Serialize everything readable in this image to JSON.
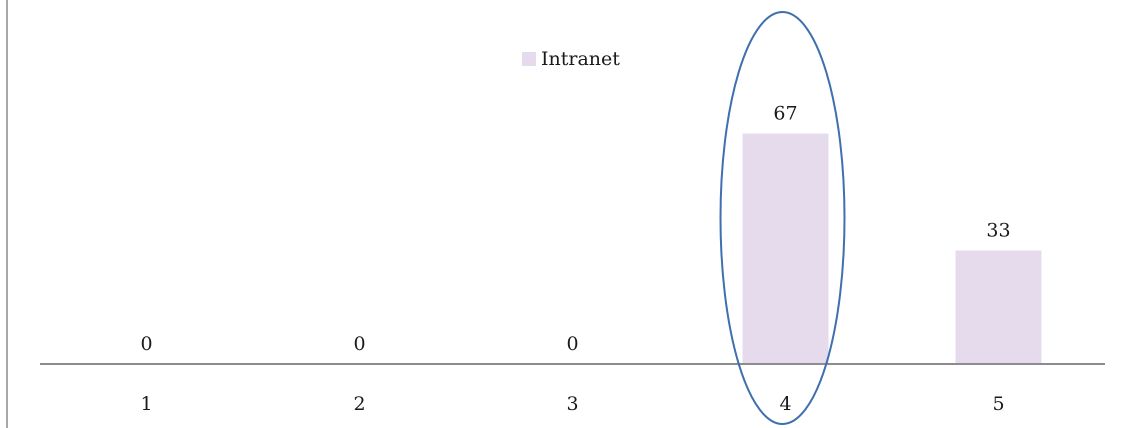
{
  "chart_data": {
    "type": "bar",
    "categories": [
      "1",
      "2",
      "3",
      "4",
      "5"
    ],
    "series": [
      {
        "name": "Intranet",
        "values": [
          0,
          0,
          0,
          67,
          33
        ],
        "color": "#e6dbec"
      }
    ],
    "title": "",
    "xlabel": "",
    "ylabel": "",
    "ylim": [
      0,
      100
    ],
    "grid": false,
    "legend": "top-center",
    "data_labels": true,
    "highlight": {
      "category": "4",
      "shape": "ellipse",
      "color": "#3f6fae"
    },
    "axis_color": "#8c8c8c"
  }
}
